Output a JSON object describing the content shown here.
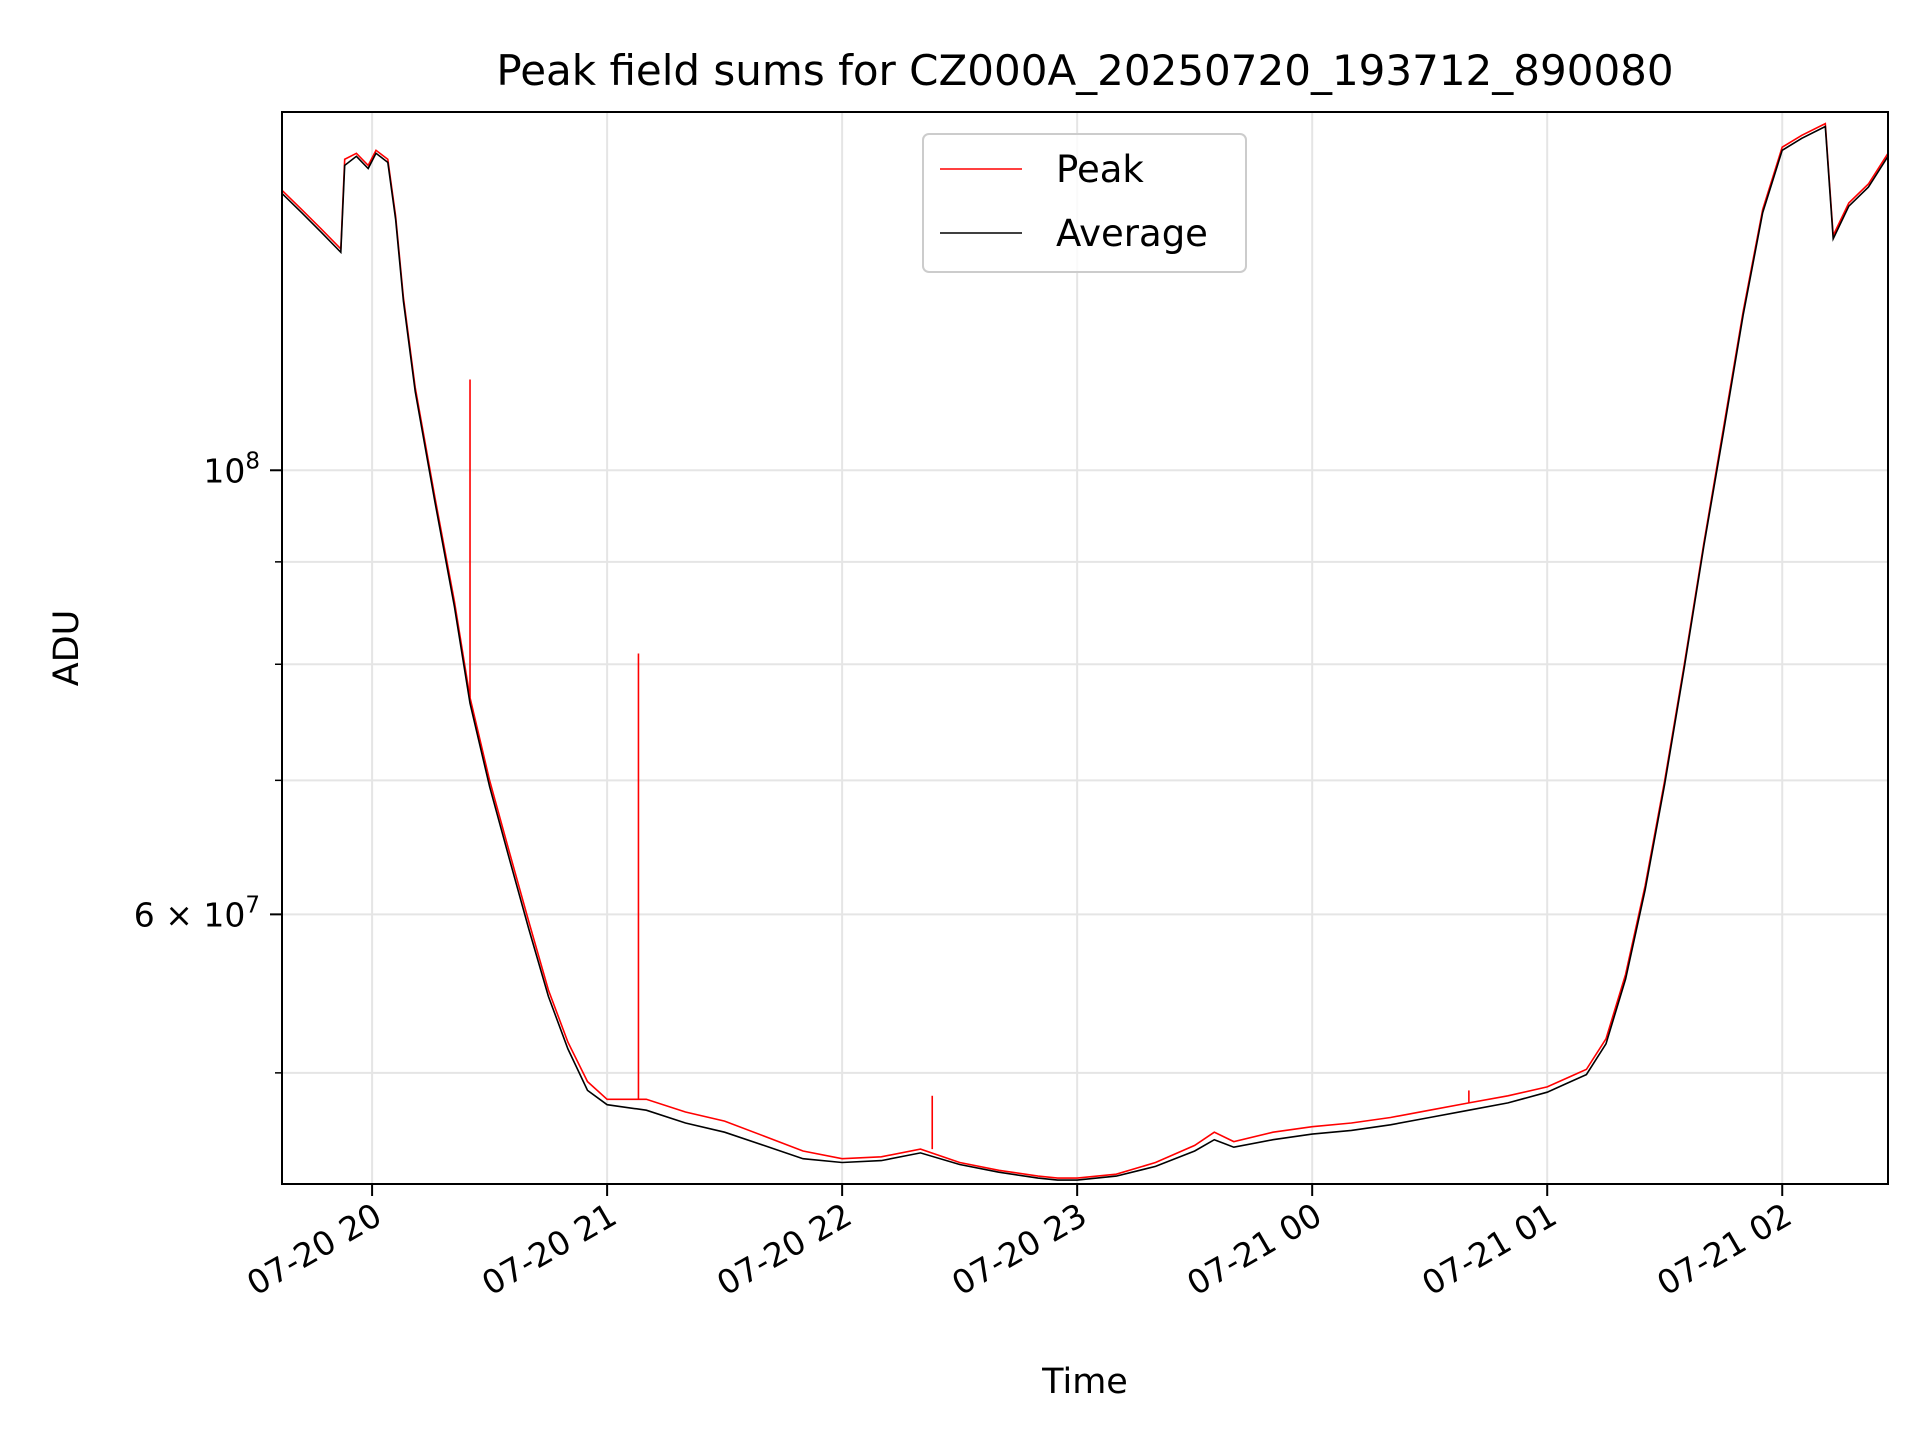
{
  "chart_data": {
    "type": "line",
    "title": "Peak field sums for CZ000A_20250720_193712_890080",
    "xlabel": "Time",
    "ylabel": "ADU",
    "yscale": "log",
    "xlim": [
      "07-20 19:37",
      "07-21 02:27"
    ],
    "ylim": [
      44000000,
      151000000
    ],
    "x_ticks": [
      "07-20 20",
      "07-20 21",
      "07-20 22",
      "07-20 23",
      "07-21 00",
      "07-21 01",
      "07-21 02"
    ],
    "y_tick_major": [
      {
        "label_base": "10",
        "label_exp": "8",
        "value": 100000000
      },
      {
        "label_base": "6 × 10",
        "label_exp": "7",
        "value": 60000000
      }
    ],
    "grid": true,
    "legend_position": "top-center",
    "series": [
      {
        "name": "Peak",
        "color": "#ff0000",
        "x": [
          "07-20 19:37",
          "07-20 19:42",
          "07-20 19:47",
          "07-20 19:52",
          "07-20 19:53",
          "07-20 19:56",
          "07-20 19:59",
          "07-20 20:01",
          "07-20 20:04",
          "07-20 20:06",
          "07-20 20:08",
          "07-20 20:11",
          "07-20 20:16",
          "07-20 20:21",
          "07-20 20:25",
          "07-20 20:30",
          "07-20 20:35",
          "07-20 20:40",
          "07-20 20:45",
          "07-20 20:50",
          "07-20 20:55",
          "07-20 21:00",
          "07-20 21:10",
          "07-20 21:20",
          "07-20 21:30",
          "07-20 21:40",
          "07-20 21:50",
          "07-20 22:00",
          "07-20 22:10",
          "07-20 22:20",
          "07-20 22:30",
          "07-20 22:40",
          "07-20 22:50",
          "07-20 22:55",
          "07-20 23:00",
          "07-20 23:10",
          "07-20 23:20",
          "07-20 23:30",
          "07-20 23:35",
          "07-20 23:40",
          "07-20 23:50",
          "07-21 00:00",
          "07-21 00:10",
          "07-21 00:20",
          "07-21 00:30",
          "07-21 00:40",
          "07-21 00:50",
          "07-21 01:00",
          "07-21 01:05",
          "07-21 01:10",
          "07-21 01:15",
          "07-21 01:20",
          "07-21 01:25",
          "07-21 01:30",
          "07-21 01:35",
          "07-21 01:40",
          "07-21 01:45",
          "07-21 01:50",
          "07-21 01:55",
          "07-21 02:00",
          "07-21 02:05",
          "07-21 02:11",
          "07-21 02:13",
          "07-21 02:17",
          "07-21 02:22",
          "07-21 02:27"
        ],
        "values": [
          138000000,
          135000000,
          132000000,
          129000000,
          143000000,
          144000000,
          142000000,
          144500000,
          143000000,
          134000000,
          122000000,
          110000000,
          97000000,
          86000000,
          77000000,
          70000000,
          64500000,
          59500000,
          55000000,
          51800000,
          49500000,
          48500000,
          48500000,
          47800000,
          47300000,
          46500000,
          45700000,
          45300000,
          45400000,
          45800000,
          45100000,
          44700000,
          44400000,
          44300000,
          44300000,
          44500000,
          45100000,
          46000000,
          46700000,
          46200000,
          46700000,
          47000000,
          47200000,
          47500000,
          47900000,
          48300000,
          48700000,
          49200000,
          49700000,
          50200000,
          52000000,
          56000000,
          62000000,
          70000000,
          80000000,
          92000000,
          105000000,
          120000000,
          135000000,
          145000000,
          147000000,
          149000000,
          131000000,
          136000000,
          139000000,
          144000000
        ],
        "spikes": [
          [
            "07-20 20:25",
            111000000
          ],
          [
            "07-20 21:08",
            81000000
          ],
          [
            "07-20 22:23",
            48700000
          ],
          [
            "07-21 00:40",
            49000000
          ]
        ]
      },
      {
        "name": "Average",
        "color": "#000000",
        "x": [
          "07-20 19:37",
          "07-20 19:42",
          "07-20 19:47",
          "07-20 19:52",
          "07-20 19:53",
          "07-20 19:56",
          "07-20 19:59",
          "07-20 20:01",
          "07-20 20:04",
          "07-20 20:06",
          "07-20 20:08",
          "07-20 20:11",
          "07-20 20:16",
          "07-20 20:21",
          "07-20 20:25",
          "07-20 20:30",
          "07-20 20:35",
          "07-20 20:40",
          "07-20 20:45",
          "07-20 20:50",
          "07-20 20:55",
          "07-20 21:00",
          "07-20 21:10",
          "07-20 21:20",
          "07-20 21:30",
          "07-20 21:40",
          "07-20 21:50",
          "07-20 22:00",
          "07-20 22:10",
          "07-20 22:20",
          "07-20 22:30",
          "07-20 22:40",
          "07-20 22:50",
          "07-20 22:55",
          "07-20 23:00",
          "07-20 23:10",
          "07-20 23:20",
          "07-20 23:30",
          "07-20 23:35",
          "07-20 23:40",
          "07-20 23:50",
          "07-21 00:00",
          "07-21 00:10",
          "07-21 00:20",
          "07-21 00:30",
          "07-21 00:40",
          "07-21 00:50",
          "07-21 01:00",
          "07-21 01:05",
          "07-21 01:10",
          "07-21 01:15",
          "07-21 01:20",
          "07-21 01:25",
          "07-21 01:30",
          "07-21 01:35",
          "07-21 01:40",
          "07-21 01:45",
          "07-21 01:50",
          "07-21 01:55",
          "07-21 02:00",
          "07-21 02:05",
          "07-21 02:11",
          "07-21 02:13",
          "07-21 02:17",
          "07-21 02:22",
          "07-21 02:27"
        ],
        "values": [
          137500000,
          134500000,
          131500000,
          128500000,
          142000000,
          143500000,
          141500000,
          144000000,
          142500000,
          133500000,
          121500000,
          109500000,
          96500000,
          85500000,
          76500000,
          69500000,
          64000000,
          59000000,
          54600000,
          51400000,
          49000000,
          48200000,
          47900000,
          47200000,
          46700000,
          46000000,
          45300000,
          45100000,
          45200000,
          45600000,
          45000000,
          44600000,
          44300000,
          44200000,
          44200000,
          44400000,
          44900000,
          45700000,
          46300000,
          45900000,
          46300000,
          46600000,
          46800000,
          47100000,
          47500000,
          47900000,
          48300000,
          48900000,
          49400000,
          49900000,
          51700000,
          55700000,
          61700000,
          69700000,
          79700000,
          91700000,
          104500000,
          119500000,
          134500000,
          144500000,
          146500000,
          148500000,
          130500000,
          135500000,
          138500000,
          143500000
        ]
      }
    ]
  }
}
